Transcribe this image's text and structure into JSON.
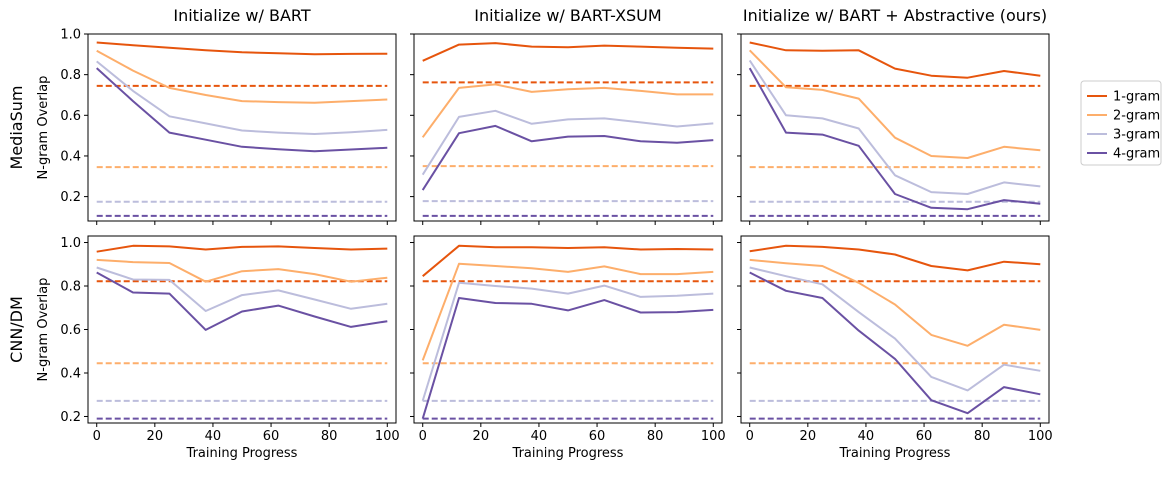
{
  "chart_data": {
    "type": "line",
    "columns": [
      "Initialize w/ BART",
      "Initialize w/ BART-XSUM",
      "Initialize w/ BART + Abstractive (ours)"
    ],
    "rows": [
      "MediaSum",
      "CNN/DM"
    ],
    "ylabel": "N-gram Overlap",
    "xlabel": "Training Progress",
    "x": [
      0,
      12.5,
      25,
      37.5,
      50,
      62.5,
      75,
      87.5,
      100
    ],
    "xticks": [
      0,
      20,
      40,
      60,
      80,
      100
    ],
    "xlim": [
      -3,
      103
    ],
    "legend_position": "right",
    "series_names": [
      "1-gram",
      "2-gram",
      "3-gram",
      "4-gram"
    ],
    "colors": [
      "#e6550d",
      "#fdae6b",
      "#bcbddc",
      "#6a51a3"
    ],
    "baselines_style": "dashed",
    "panels": [
      {
        "row": 0,
        "col": 0,
        "ylim": [
          0.08,
          1.0
        ],
        "yticks": [
          0.2,
          0.4,
          0.6,
          0.8,
          1.0
        ],
        "baselines": [
          0.745,
          0.345,
          0.175,
          0.105
        ],
        "series": [
          [
            0.958,
            0.945,
            0.932,
            0.92,
            0.91,
            0.905,
            0.9,
            0.902,
            0.903
          ],
          [
            0.918,
            0.82,
            0.735,
            0.7,
            0.67,
            0.665,
            0.662,
            0.67,
            0.678
          ],
          [
            0.865,
            0.72,
            0.595,
            0.56,
            0.525,
            0.515,
            0.508,
            0.517,
            0.528
          ],
          [
            0.832,
            0.67,
            0.515,
            0.48,
            0.445,
            0.433,
            0.423,
            0.432,
            0.44
          ]
        ]
      },
      {
        "row": 0,
        "col": 1,
        "ylim": [
          0.08,
          1.0
        ],
        "yticks": [
          0.2,
          0.4,
          0.6,
          0.8,
          1.0
        ],
        "baselines": [
          0.762,
          0.35,
          0.178,
          0.105
        ],
        "series": [
          [
            0.868,
            0.948,
            0.955,
            0.938,
            0.935,
            0.943,
            0.938,
            0.932,
            0.928
          ],
          [
            0.492,
            0.735,
            0.752,
            0.715,
            0.728,
            0.735,
            0.72,
            0.703,
            0.703
          ],
          [
            0.308,
            0.592,
            0.622,
            0.558,
            0.58,
            0.585,
            0.565,
            0.545,
            0.56
          ],
          [
            0.232,
            0.512,
            0.548,
            0.472,
            0.495,
            0.498,
            0.472,
            0.465,
            0.478
          ]
        ]
      },
      {
        "row": 0,
        "col": 2,
        "ylim": [
          0.08,
          1.0
        ],
        "yticks": [
          0.2,
          0.4,
          0.6,
          0.8,
          1.0
        ],
        "baselines": [
          0.745,
          0.345,
          0.175,
          0.105
        ],
        "series": [
          [
            0.958,
            0.92,
            0.918,
            0.92,
            0.83,
            0.795,
            0.785,
            0.818,
            0.795
          ],
          [
            0.92,
            0.738,
            0.725,
            0.682,
            0.49,
            0.4,
            0.39,
            0.445,
            0.428
          ],
          [
            0.87,
            0.6,
            0.585,
            0.535,
            0.305,
            0.222,
            0.213,
            0.27,
            0.25
          ],
          [
            0.832,
            0.515,
            0.505,
            0.45,
            0.213,
            0.145,
            0.138,
            0.183,
            0.165
          ]
        ]
      },
      {
        "row": 1,
        "col": 0,
        "ylim": [
          0.17,
          1.03
        ],
        "yticks": [
          0.2,
          0.4,
          0.6,
          0.8,
          1.0
        ],
        "baselines": [
          0.822,
          0.445,
          0.272,
          0.19
        ],
        "series": [
          [
            0.958,
            0.985,
            0.982,
            0.968,
            0.98,
            0.982,
            0.975,
            0.968,
            0.972
          ],
          [
            0.92,
            0.91,
            0.906,
            0.82,
            0.868,
            0.878,
            0.855,
            0.82,
            0.838
          ],
          [
            0.885,
            0.83,
            0.828,
            0.685,
            0.758,
            0.78,
            0.738,
            0.695,
            0.718
          ],
          [
            0.862,
            0.77,
            0.765,
            0.598,
            0.683,
            0.71,
            0.66,
            0.612,
            0.638
          ]
        ]
      },
      {
        "row": 1,
        "col": 1,
        "ylim": [
          0.17,
          1.03
        ],
        "yticks": [
          0.2,
          0.4,
          0.6,
          0.8,
          1.0
        ],
        "baselines": [
          0.822,
          0.445,
          0.272,
          0.19
        ],
        "series": [
          [
            0.845,
            0.985,
            0.978,
            0.978,
            0.975,
            0.978,
            0.968,
            0.97,
            0.968
          ],
          [
            0.458,
            0.902,
            0.892,
            0.882,
            0.865,
            0.89,
            0.855,
            0.855,
            0.865
          ],
          [
            0.272,
            0.815,
            0.8,
            0.788,
            0.765,
            0.802,
            0.75,
            0.755,
            0.765
          ],
          [
            0.19,
            0.745,
            0.722,
            0.718,
            0.688,
            0.735,
            0.678,
            0.68,
            0.69
          ]
        ]
      },
      {
        "row": 1,
        "col": 2,
        "ylim": [
          0.17,
          1.03
        ],
        "yticks": [
          0.2,
          0.4,
          0.6,
          0.8,
          1.0
        ],
        "baselines": [
          0.822,
          0.445,
          0.272,
          0.19
        ],
        "series": [
          [
            0.96,
            0.985,
            0.98,
            0.968,
            0.945,
            0.892,
            0.872,
            0.912,
            0.9
          ],
          [
            0.92,
            0.905,
            0.892,
            0.815,
            0.715,
            0.575,
            0.525,
            0.622,
            0.598
          ],
          [
            0.885,
            0.845,
            0.808,
            0.68,
            0.558,
            0.382,
            0.32,
            0.438,
            0.41
          ],
          [
            0.862,
            0.778,
            0.745,
            0.595,
            0.465,
            0.275,
            0.215,
            0.335,
            0.302
          ]
        ]
      }
    ]
  }
}
